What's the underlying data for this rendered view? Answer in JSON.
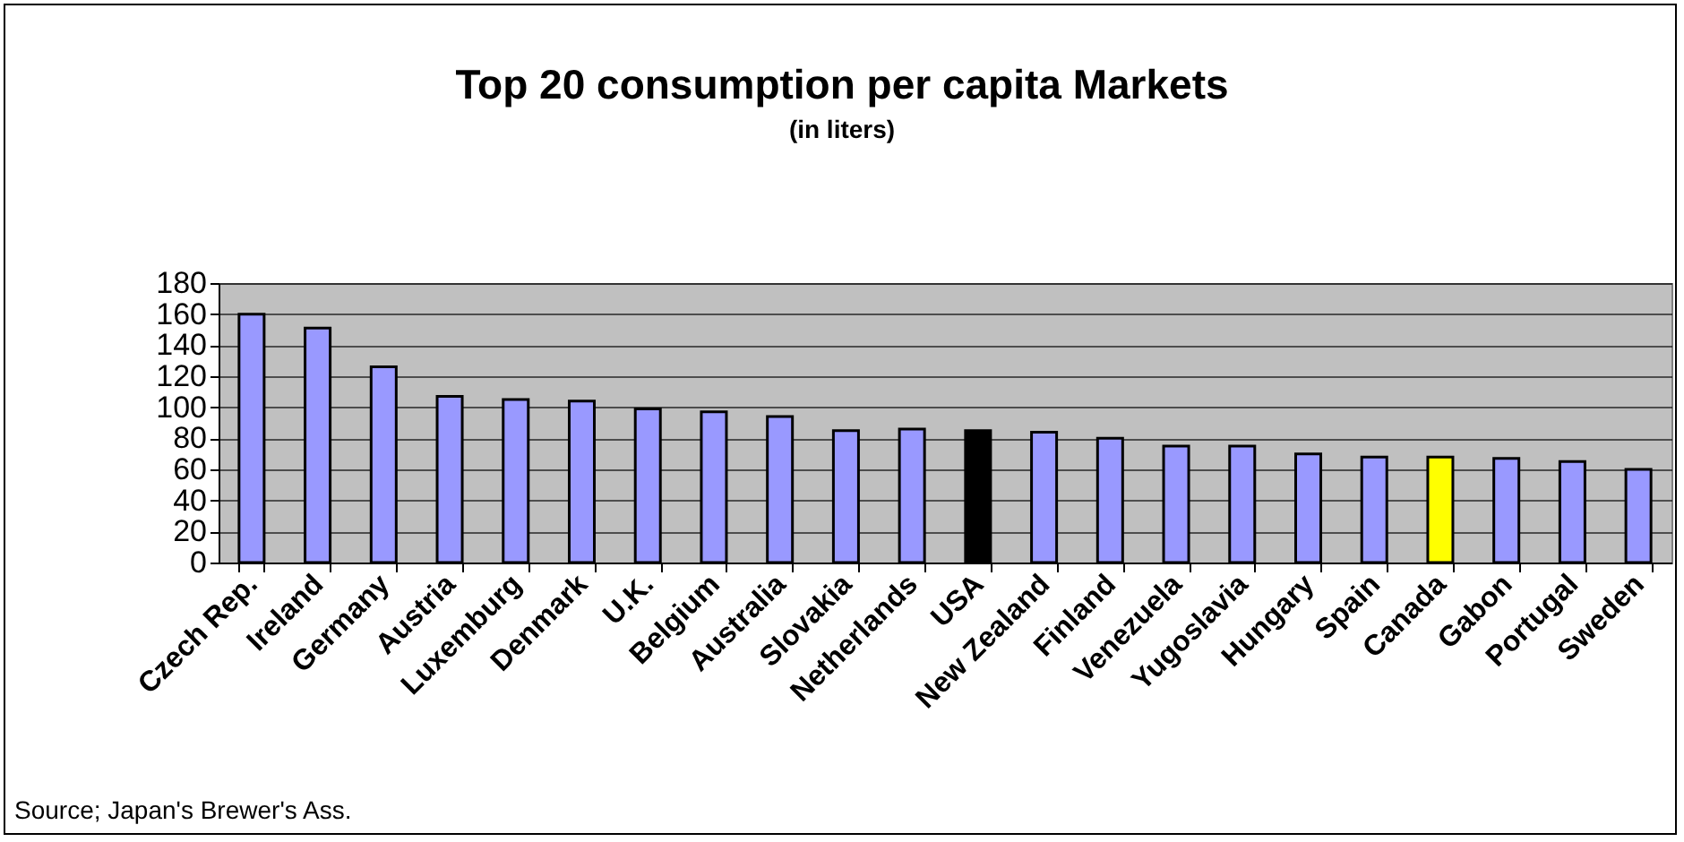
{
  "chart_data": {
    "type": "bar",
    "title": "Top 20 consumption per capita Markets",
    "subtitle": "(in liters)",
    "categories": [
      "Czech Rep.",
      "Ireland",
      "Germany",
      "Austria",
      "Luxemburg",
      "Denmark",
      "U.K.",
      "Belgium",
      "Australia",
      "Slovakia",
      "Netherlands",
      "USA",
      "New Zealand",
      "Finland",
      "Venezuela",
      "Yugoslavia",
      "Hungary",
      "Spain",
      "Canada",
      "Gabon",
      "Portugal",
      "Sweden"
    ],
    "values": [
      160,
      151,
      126,
      107,
      105,
      104,
      99,
      97,
      94,
      85,
      86,
      85,
      84,
      80,
      75,
      75,
      70,
      68,
      68,
      67,
      65,
      60
    ],
    "colors": [
      "#9999ff",
      "#9999ff",
      "#9999ff",
      "#9999ff",
      "#9999ff",
      "#9999ff",
      "#9999ff",
      "#9999ff",
      "#9999ff",
      "#9999ff",
      "#9999ff",
      "#000000",
      "#9999ff",
      "#9999ff",
      "#9999ff",
      "#9999ff",
      "#9999ff",
      "#9999ff",
      "#ffff00",
      "#9999ff",
      "#9999ff",
      "#9999ff"
    ],
    "ylim": [
      0,
      180
    ],
    "yticks": [
      0,
      20,
      40,
      60,
      80,
      100,
      120,
      140,
      160,
      180
    ],
    "grid": true,
    "annotations": [
      "Source; Japan's Brewer's Ass."
    ]
  }
}
